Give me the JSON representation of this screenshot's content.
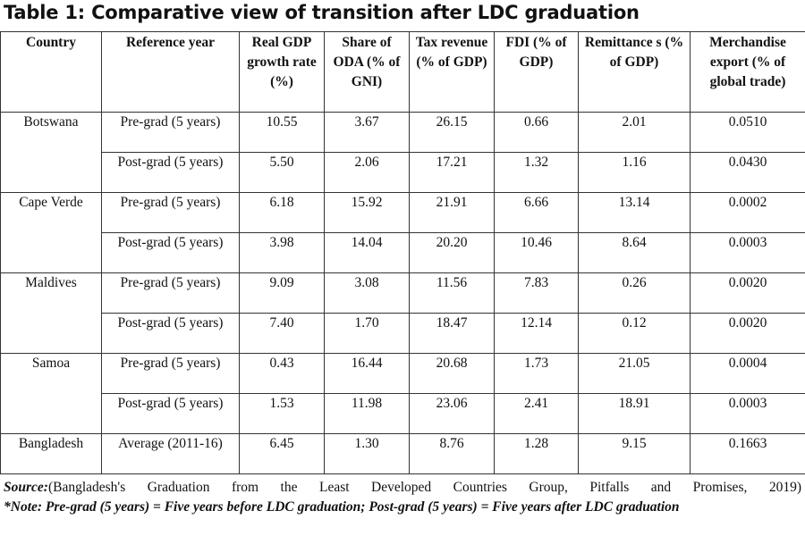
{
  "title": "Table 1: Comparative view of transition after LDC graduation",
  "table": {
    "headers": [
      "Country",
      "Reference year",
      "Real GDP growth rate (%)",
      "Share of ODA (% of GNI)",
      "Tax revenue (% of GDP)",
      "FDI (% of GDP)",
      "Remittance s (% of GDP)",
      "Merchandise export (% of global trade)"
    ],
    "groups": [
      {
        "country": "Botswana",
        "rows": [
          {
            "ref": "Pre-grad (5 years)",
            "values": [
              "10.55",
              "3.67",
              "26.15",
              "0.66",
              "2.01",
              "0.0510"
            ]
          },
          {
            "ref": "Post-grad (5 years)",
            "values": [
              "5.50",
              "2.06",
              "17.21",
              "1.32",
              "1.16",
              "0.0430"
            ]
          }
        ]
      },
      {
        "country": "Cape Verde",
        "rows": [
          {
            "ref": "Pre-grad (5 years)",
            "values": [
              "6.18",
              "15.92",
              "21.91",
              "6.66",
              "13.14",
              "0.0002"
            ]
          },
          {
            "ref": "Post-grad (5 years)",
            "values": [
              "3.98",
              "14.04",
              "20.20",
              "10.46",
              "8.64",
              "0.0003"
            ]
          }
        ]
      },
      {
        "country": "Maldives",
        "rows": [
          {
            "ref": "Pre-grad (5 years)",
            "values": [
              "9.09",
              "3.08",
              "11.56",
              "7.83",
              "0.26",
              "0.0020"
            ]
          },
          {
            "ref": "Post-grad (5 years)",
            "values": [
              "7.40",
              "1.70",
              "18.47",
              "12.14",
              "0.12",
              "0.0020"
            ]
          }
        ]
      },
      {
        "country": "Samoa",
        "rows": [
          {
            "ref": "Pre-grad (5 years)",
            "values": [
              "0.43",
              "16.44",
              "20.68",
              "1.73",
              "21.05",
              "0.0004"
            ]
          },
          {
            "ref": "Post-grad (5 years)",
            "values": [
              "1.53",
              "11.98",
              "23.06",
              "2.41",
              "18.91",
              "0.0003"
            ]
          }
        ]
      },
      {
        "country": "Bangladesh",
        "rows": [
          {
            "ref": "Average (2011-16)",
            "values": [
              "6.45",
              "1.30",
              "8.76",
              "1.28",
              "9.15",
              "0.1663"
            ]
          }
        ]
      }
    ]
  },
  "source": {
    "label": "Source:",
    "text": "(Bangladesh's Graduation from the Least Developed Countries Group, Pitfalls and Promises, 2019)"
  },
  "note": "*Note: Pre-grad (5 years) = Five years before LDC graduation; Post-grad (5 years) = Five years after LDC graduation"
}
